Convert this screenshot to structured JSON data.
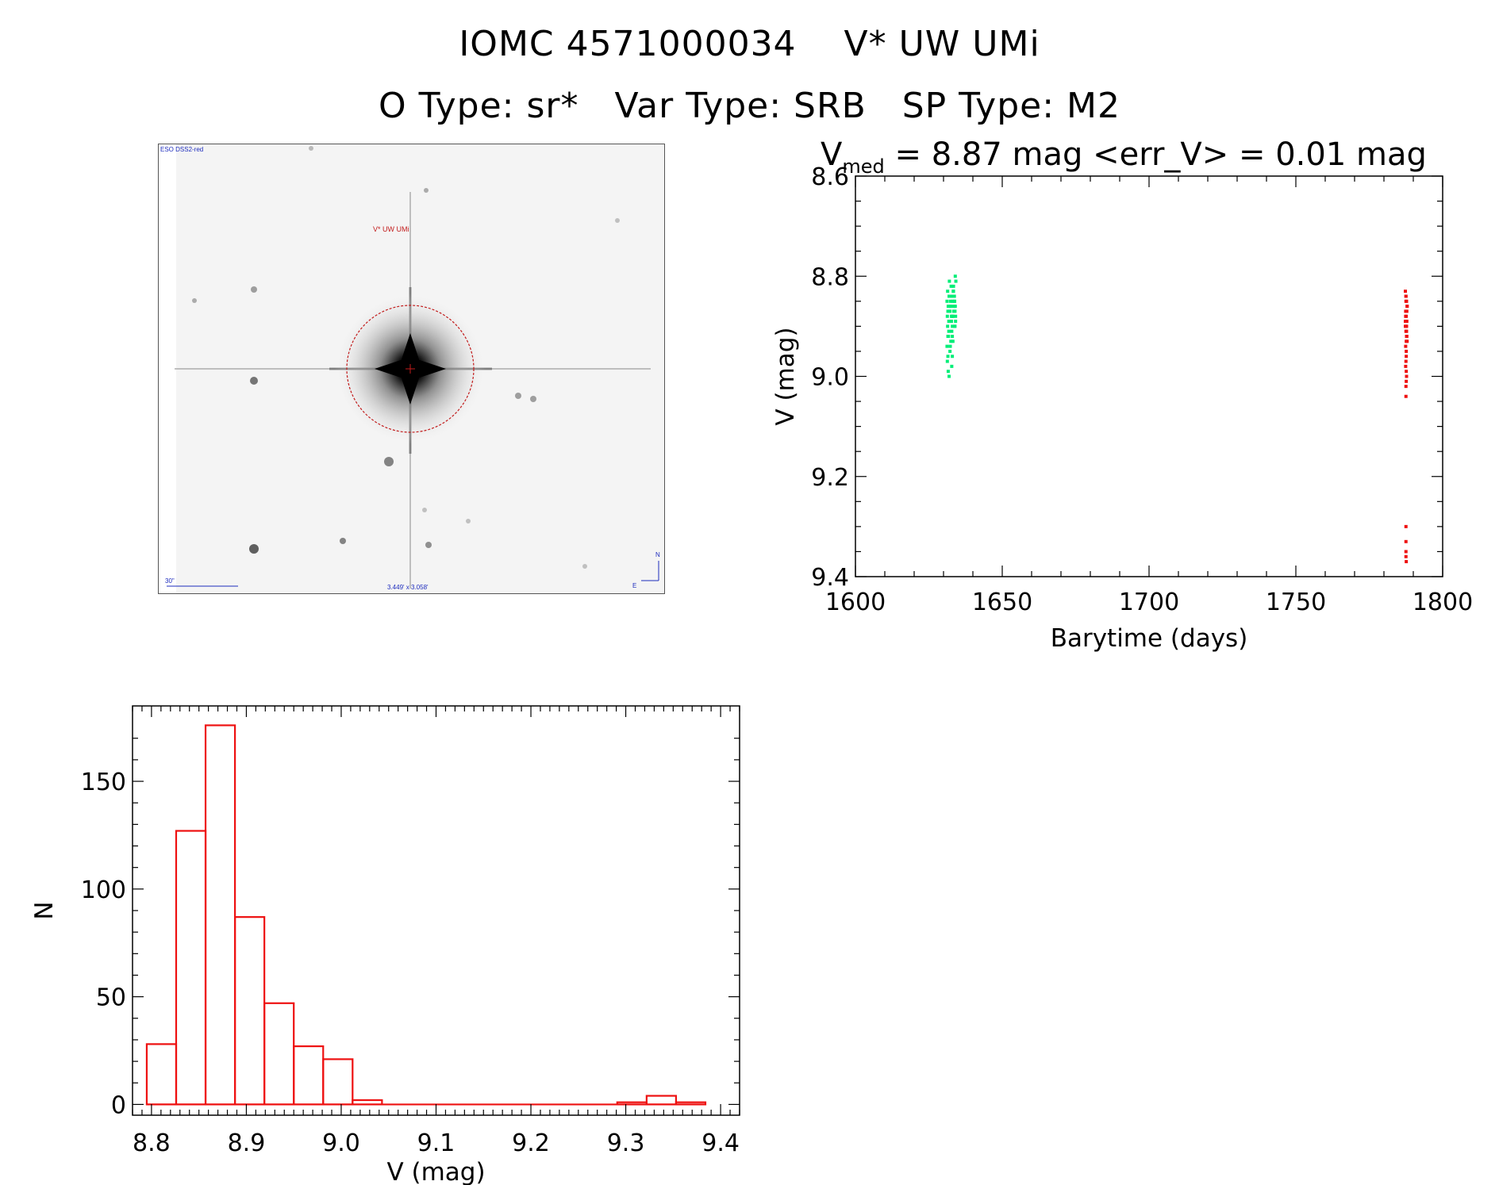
{
  "header": {
    "title_line1": "IOMC 4571000034    V* UW UMi",
    "title_line2": "O Type: sr*   Var Type: SRB   SP Type: M2"
  },
  "image_panel": {
    "survey_label": "ESO DSS2-red",
    "target_label": "V* UW UMi",
    "scale_label": "30\"",
    "fov_label": "3.449' x 3.058'",
    "north_label": "N",
    "east_label": "E"
  },
  "colors": {
    "group1": "#00ee77",
    "group2": "#ee1111",
    "hist": "#ee1111",
    "circle": "#c21b1b"
  },
  "chart_data": [
    {
      "type": "scatter",
      "title_main": "V",
      "title_sub": "med",
      "title_rest": " = 8.87 mag <err_V> = 0.01 mag",
      "xlabel": "Barytime (days)",
      "ylabel": "V (mag)",
      "xlim": [
        1600,
        1800
      ],
      "ylim": [
        9.4,
        8.6
      ],
      "y_inverted": true,
      "xticks": [
        "1600",
        "1650",
        "1700",
        "1750",
        "1800"
      ],
      "yticks": [
        "8.6",
        "8.8",
        "9.0",
        "9.2",
        "9.4"
      ],
      "series": [
        {
          "color_key": "group1",
          "x": [
            1631.2,
            1631.5,
            1631.8,
            1632.1,
            1632.4,
            1632.7,
            1633.0,
            1633.3,
            1633.6,
            1633.9,
            1634.2,
            1631.3,
            1631.6,
            1631.9,
            1632.2,
            1632.5,
            1632.8,
            1633.1,
            1633.4,
            1633.7,
            1634.0,
            1631.4,
            1631.7,
            1632.0,
            1632.3,
            1632.6,
            1632.9,
            1633.2,
            1633.5,
            1633.8,
            1634.1,
            1631.2,
            1631.5,
            1631.8,
            1632.1,
            1632.4,
            1632.7,
            1633.0,
            1633.3,
            1633.6,
            1633.9,
            1631.3,
            1631.6,
            1631.9,
            1632.2,
            1632.5,
            1632.8,
            1633.1,
            1633.4,
            1633.7,
            1634.0,
            1631.4,
            1632.0,
            1632.6,
            1633.2,
            1633.8,
            1631.5,
            1632.3,
            1633.0,
            1634.1
          ],
          "y": [
            8.85,
            8.87,
            8.89,
            8.84,
            8.86,
            8.88,
            8.9,
            8.83,
            8.85,
            8.87,
            8.81,
            8.88,
            8.86,
            8.84,
            8.87,
            8.89,
            8.91,
            8.85,
            8.83,
            8.86,
            8.8,
            8.9,
            8.92,
            8.86,
            8.84,
            8.82,
            8.88,
            8.93,
            8.87,
            8.85,
            8.89,
            8.94,
            8.96,
            8.91,
            8.87,
            8.85,
            8.89,
            8.92,
            8.84,
            8.86,
            8.9,
            8.97,
            8.99,
            9.0,
            8.95,
            8.93,
            8.98,
            8.88,
            8.82,
            8.84,
            8.86,
            8.83,
            8.81,
            8.86,
            8.88,
            8.9,
            8.92,
            8.94,
            8.96,
            8.88
          ]
        },
        {
          "color_key": "group2",
          "x": [
            1787.3,
            1787.5,
            1787.7,
            1787.9,
            1787.4,
            1787.6,
            1787.8,
            1787.3,
            1787.5,
            1787.7,
            1787.9,
            1787.4,
            1787.6,
            1787.8,
            1787.3,
            1787.5,
            1787.7,
            1787.9,
            1787.4,
            1787.6,
            1787.8,
            1787.5,
            1787.6,
            1787.7,
            1787.5,
            1787.5,
            1787.6,
            1787.4,
            1787.6,
            1787.5,
            1787.7,
            1787.6,
            1787.5,
            1787.5,
            1787.5,
            1787.5,
            1787.6
          ],
          "y": [
            8.83,
            8.84,
            8.85,
            8.86,
            8.87,
            8.88,
            8.89,
            8.9,
            8.91,
            8.92,
            8.86,
            8.88,
            8.9,
            8.87,
            8.89,
            8.85,
            8.91,
            8.93,
            8.94,
            8.95,
            8.92,
            8.97,
            8.99,
            9.0,
            9.02,
            9.04,
            8.96,
            8.98,
            9.01,
            8.84,
            8.9,
            8.93,
            9.3,
            9.33,
            9.35,
            9.36,
            9.37
          ]
        }
      ]
    },
    {
      "type": "bar",
      "xlabel": "V (mag)",
      "ylabel": "N",
      "xlim": [
        8.78,
        9.42
      ],
      "ylim": [
        -5,
        185
      ],
      "xticks": [
        "8.8",
        "8.9",
        "9.0",
        "9.1",
        "9.2",
        "9.3",
        "9.4"
      ],
      "yticks": [
        "0",
        "50",
        "100",
        "150"
      ],
      "bin_edges": [
        8.795,
        8.826,
        8.857,
        8.888,
        8.919,
        8.95,
        8.981,
        9.012,
        9.043,
        9.074,
        9.105,
        9.136,
        9.167,
        9.198,
        9.229,
        9.26,
        9.291,
        9.322,
        9.353,
        9.384
      ],
      "counts": [
        28,
        127,
        176,
        87,
        47,
        27,
        21,
        2,
        0,
        0,
        0,
        0,
        0,
        0,
        0,
        0,
        1,
        4,
        1
      ]
    }
  ]
}
